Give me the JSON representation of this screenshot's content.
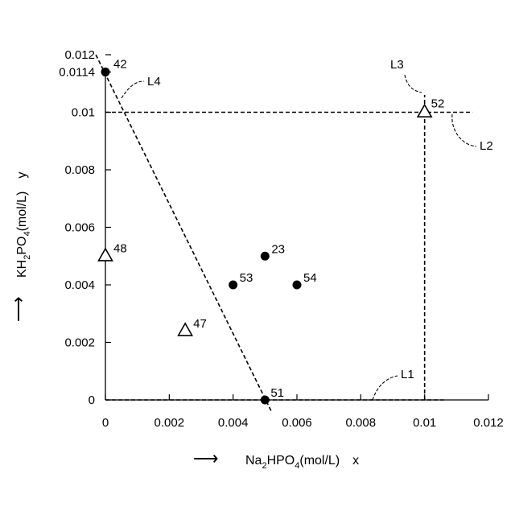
{
  "chart_data": {
    "type": "scatter",
    "xlabel_prefix": "Na",
    "xlabel_sub1": "2",
    "xlabel_mid": "HPO",
    "xlabel_sub2": "4",
    "xlabel_suffix": "(mol/L)　x",
    "ylabel_prefix": "KH",
    "ylabel_sub1": "2",
    "ylabel_mid": "PO",
    "ylabel_sub2": "4",
    "ylabel_suffix": "(mol/L)　y",
    "x_arrow": "⟶",
    "y_arrow": "⟶",
    "xlim": [
      0,
      0.012
    ],
    "ylim": [
      0,
      0.012
    ],
    "x_ticks": [
      {
        "value": 0,
        "label": "0"
      },
      {
        "value": 0.002,
        "label": "0.002"
      },
      {
        "value": 0.004,
        "label": "0.004"
      },
      {
        "value": 0.006,
        "label": "0.006"
      },
      {
        "value": 0.008,
        "label": "0.008"
      },
      {
        "value": 0.01,
        "label": "0.01"
      },
      {
        "value": 0.012,
        "label": "0.012"
      }
    ],
    "y_ticks": [
      {
        "value": 0,
        "label": "0"
      },
      {
        "value": 0.002,
        "label": "0.002"
      },
      {
        "value": 0.004,
        "label": "0.004"
      },
      {
        "value": 0.006,
        "label": "0.006"
      },
      {
        "value": 0.008,
        "label": "0.008"
      },
      {
        "value": 0.01,
        "label": "0.01"
      },
      {
        "value": 0.0114,
        "label": "0.0114"
      },
      {
        "value": 0.012,
        "label": "0.012"
      }
    ],
    "points": [
      {
        "label": "42",
        "x": 0,
        "y": 0.0114,
        "marker": "circle"
      },
      {
        "label": "52",
        "x": 0.01,
        "y": 0.01,
        "marker": "triangle"
      },
      {
        "label": "48",
        "x": 0,
        "y": 0.005,
        "marker": "triangle"
      },
      {
        "label": "23",
        "x": 0.005,
        "y": 0.005,
        "marker": "circle"
      },
      {
        "label": "53",
        "x": 0.004,
        "y": 0.004,
        "marker": "circle"
      },
      {
        "label": "54",
        "x": 0.006,
        "y": 0.004,
        "marker": "circle"
      },
      {
        "label": "47",
        "x": 0.0025,
        "y": 0.0024,
        "marker": "triangle"
      },
      {
        "label": "51",
        "x": 0.005,
        "y": 0,
        "marker": "circle"
      }
    ],
    "lines": [
      {
        "label": "L1",
        "x1": 0,
        "y1": 0,
        "x2": 0.0106,
        "y2": 0
      },
      {
        "label": "L2",
        "x1": 0,
        "y1": 0.01,
        "x2": 0.0115,
        "y2": 0.01
      },
      {
        "label": "L3",
        "x1": 0.01,
        "y1": 0,
        "x2": 0.01,
        "y2": 0.0106
      },
      {
        "label": "L4",
        "x1": -0.0003,
        "y1": 0.012,
        "x2": 0.0052,
        "y2": -0.0004
      }
    ],
    "grid": false,
    "legend": "none"
  }
}
